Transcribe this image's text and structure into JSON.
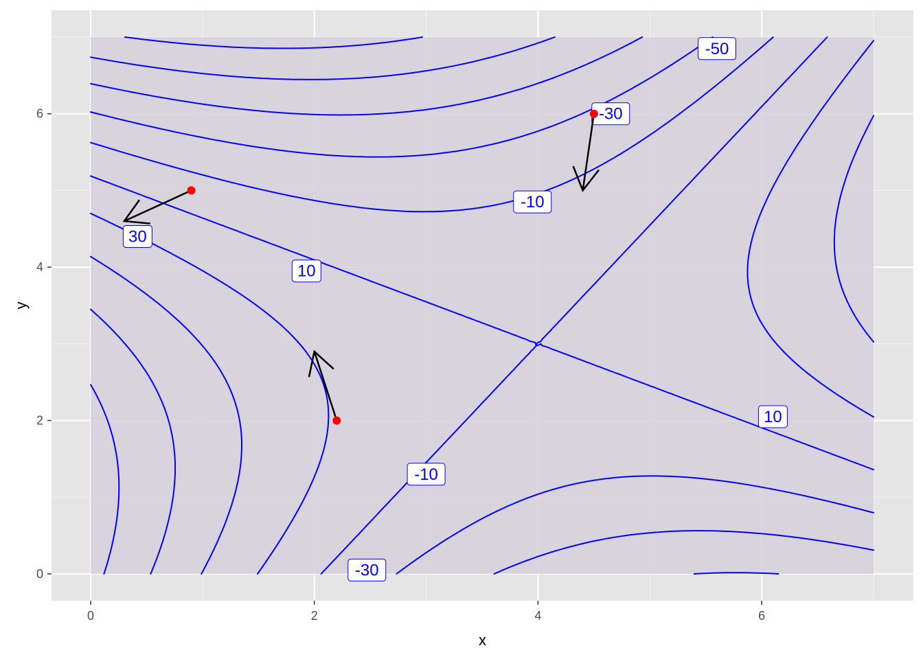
{
  "chart_data": {
    "type": "contour",
    "xlabel": "x",
    "ylabel": "y",
    "xlim": [
      -0.35,
      7.25
    ],
    "ylim": [
      -0.35,
      7.25
    ],
    "x_ticks": [
      0,
      2,
      4,
      6
    ],
    "y_ticks": [
      0,
      2,
      4,
      6
    ],
    "grid": true,
    "field": "f(x,y) = 2*(x-4)^2 - 2*(y-3)^2 + 4*(x-4)*(y-3)*0 + 0 ... (saddle at (4,3))",
    "saddle_point": [
      4,
      3
    ],
    "contour_levels": [
      -50,
      -40,
      -30,
      -20,
      -10,
      0,
      10,
      20,
      30,
      40
    ],
    "contour_labels": [
      {
        "text": "-50",
        "x": 5.6,
        "y": 6.85
      },
      {
        "text": "-30",
        "x": 4.65,
        "y": 6.0
      },
      {
        "text": "-10",
        "x": 3.95,
        "y": 4.85
      },
      {
        "text": "30",
        "x": 0.42,
        "y": 4.4
      },
      {
        "text": "10",
        "x": 1.93,
        "y": 3.95
      },
      {
        "text": "10",
        "x": 6.1,
        "y": 2.05
      },
      {
        "text": "-10",
        "x": 3.0,
        "y": 1.3
      },
      {
        "text": "-30",
        "x": 2.47,
        "y": 0.05
      }
    ],
    "points": [
      {
        "x": 0.9,
        "y": 5.0
      },
      {
        "x": 2.2,
        "y": 2.0
      },
      {
        "x": 4.5,
        "y": 6.0
      }
    ],
    "arrows": [
      {
        "from": [
          0.9,
          5.0
        ],
        "to": [
          0.3,
          4.6
        ]
      },
      {
        "from": [
          2.2,
          2.0
        ],
        "to": [
          2.0,
          2.9
        ]
      },
      {
        "from": [
          4.5,
          6.0
        ],
        "to": [
          4.4,
          5.0
        ]
      }
    ],
    "colors": {
      "panel_bg": "#e5e5e5",
      "region_fill": "#d6d0db",
      "grid_major": "#ffffff",
      "contour": "#0000ff",
      "point": "#ff0000",
      "arrow": "#000000",
      "label_bg": "#ffffff",
      "label_border": "#0000ff",
      "label_text": "#0000ff"
    }
  }
}
